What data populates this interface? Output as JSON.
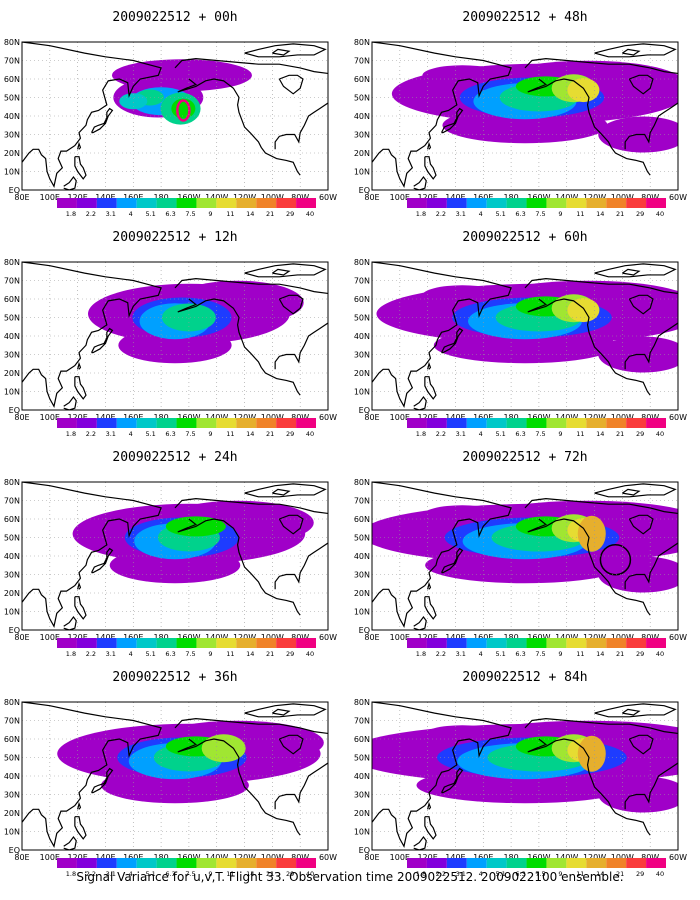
{
  "panels": [
    {
      "title": "2009022512 + 00h",
      "lead": "00h",
      "level": 0
    },
    {
      "title": "2009022512 + 48h",
      "lead": "48h",
      "level": 4
    },
    {
      "title": "2009022512 + 12h",
      "lead": "12h",
      "level": 1
    },
    {
      "title": "2009022512 + 60h",
      "lead": "60h",
      "level": 5
    },
    {
      "title": "2009022512 + 24h",
      "lead": "24h",
      "level": 2
    },
    {
      "title": "2009022512 + 72h",
      "lead": "72h",
      "level": 6
    },
    {
      "title": "2009022512 + 36h",
      "lead": "36h",
      "level": 3
    },
    {
      "title": "2009022512 + 84h",
      "lead": "84h",
      "level": 7
    }
  ],
  "lat_labels": [
    "80N",
    "70N",
    "60N",
    "50N",
    "40N",
    "30N",
    "20N",
    "10N",
    "EQ"
  ],
  "lon_labels": [
    "80E",
    "100E",
    "120E",
    "140E",
    "160E",
    "180",
    "160W",
    "140W",
    "120W",
    "100W",
    "80W",
    "60W"
  ],
  "colorbar": {
    "labels": [
      "1.8",
      "2.2",
      "3.1",
      "4",
      "5.1",
      "6.3",
      "7.5",
      "9",
      "11",
      "14",
      "21",
      "29",
      "40"
    ],
    "colors": [
      "#a000c8",
      "#8200dc",
      "#1e3cff",
      "#00a0ff",
      "#00c8c8",
      "#00d28c",
      "#00dc00",
      "#a0e632",
      "#e6dc32",
      "#e6af2d",
      "#f08228",
      "#fa3c3c",
      "#f00082"
    ]
  },
  "caption": "Signal Variance for u,v,T. Flight 33. Observation time 2009022512. 2009022100 ensemble."
}
